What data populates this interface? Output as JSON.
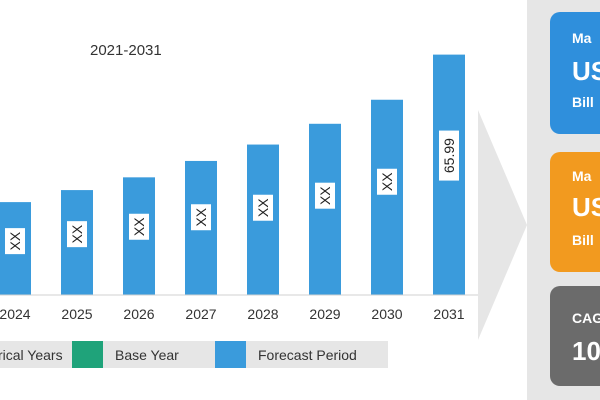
{
  "chart_data": {
    "type": "bar",
    "subtitle": "2021-2031",
    "categories": [
      "2024",
      "2025",
      "2026",
      "2027",
      "2028",
      "2029",
      "2030",
      "2031"
    ],
    "values": [
      25.5,
      28.8,
      32.3,
      36.8,
      41.3,
      47.0,
      53.6,
      65.99
    ],
    "value_labels": [
      "XX",
      "XX",
      "XX",
      "XX",
      "XX",
      "XX",
      "XX",
      "65.99"
    ],
    "ylim": [
      0,
      70
    ],
    "grid": false,
    "bar_color": "#3a9bdc"
  },
  "legend": {
    "items": [
      {
        "label": "rical Years",
        "color": "#555b61"
      },
      {
        "label": "Base Year",
        "color": "#1fa37a"
      },
      {
        "label": "Forecast Period",
        "color": "#3a9bdc"
      }
    ]
  },
  "cards": [
    {
      "l1": "Ma",
      "l2": "US",
      "l3": "Bill",
      "color": "#2f8fdc"
    },
    {
      "l1": "Ma",
      "l2": "US",
      "l3": "Bill",
      "color": "#f29a1f"
    },
    {
      "l1": "CAG",
      "l2": "10",
      "l3": "",
      "color": "#6b6b6b"
    }
  ]
}
